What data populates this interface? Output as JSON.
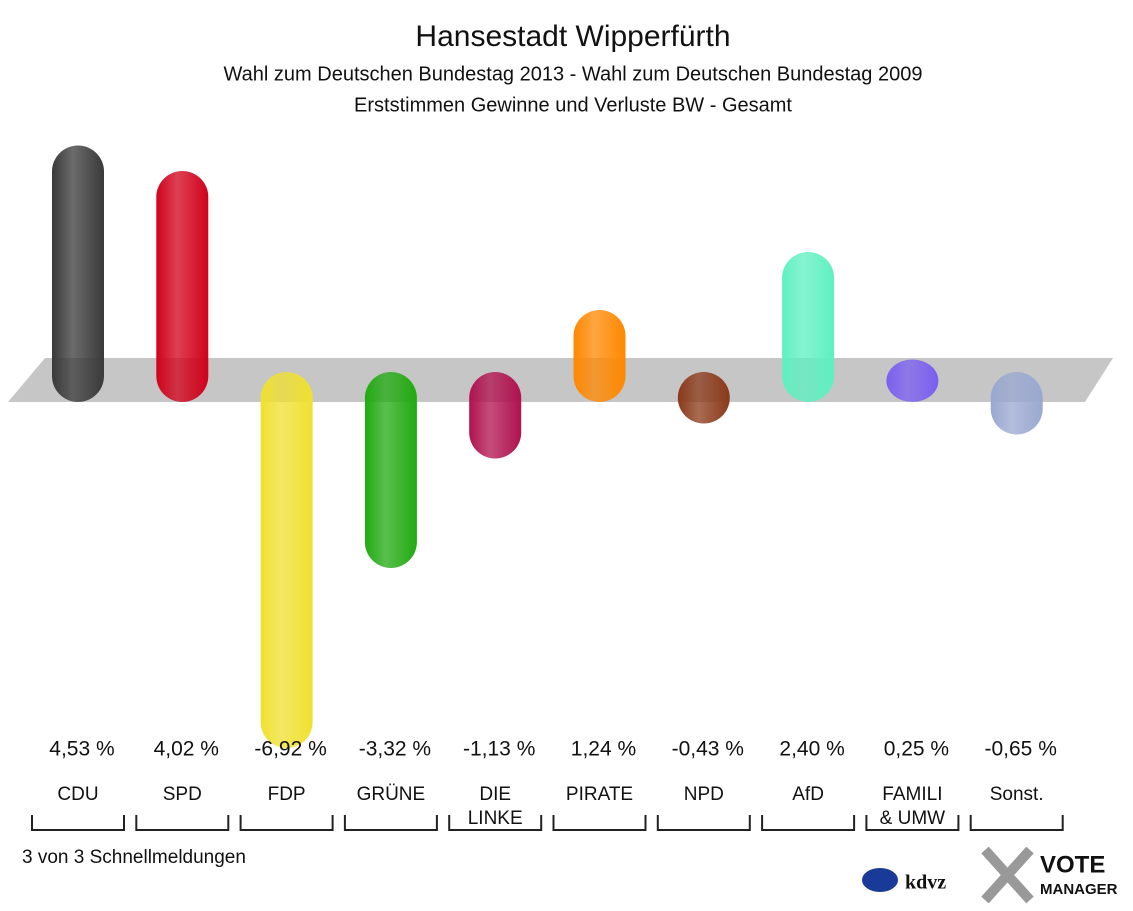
{
  "chart_data": {
    "type": "bar",
    "title": "Hansestadt Wipperfürth",
    "subtitle": "Wahl zum Deutschen Bundestag 2013 - Wahl zum Deutschen Bundestag 2009",
    "subtitle2": "Erststimmen Gewinne und Verluste BW - Gesamt",
    "categories": [
      "CDU",
      "SPD",
      "FDP",
      "GRÜNE",
      "DIE\nLINKE",
      "PIRATE",
      "NPD",
      "AfD",
      "FAMILI\n& UMW",
      "Sonst."
    ],
    "values": [
      4.53,
      4.02,
      -6.92,
      -3.32,
      -1.13,
      1.24,
      -0.43,
      2.4,
      0.25,
      -0.65
    ],
    "value_labels": [
      "4,53 %",
      "4,02 %",
      "-6,92 %",
      "-3,32 %",
      "-1,13 %",
      "1,24 %",
      "-0,43 %",
      "2,40 %",
      "0,25 %",
      "-0,65 %"
    ],
    "colors": [
      "#3a3a3a",
      "#d0021b",
      "#f0e030",
      "#22aa11",
      "#b0124f",
      "#ff8800",
      "#8b3a1a",
      "#5ef0c0",
      "#7a5ff0",
      "#9aa8d0"
    ],
    "ylim": [
      -7.5,
      5
    ],
    "footer": "3 von 3 Schnellmeldungen",
    "logo1": "kdvz",
    "logo2": "VOTE",
    "logo3": "MANAGER"
  }
}
